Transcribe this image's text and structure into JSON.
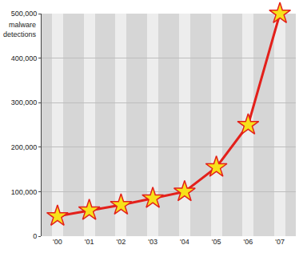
{
  "chart_data": {
    "type": "line",
    "y_label": "malware detections",
    "categories": [
      "'00",
      "'01",
      "'02",
      "'03",
      "'04",
      "'05",
      "'06",
      "'07"
    ],
    "values": [
      45000,
      58000,
      70000,
      85000,
      100000,
      155000,
      250000,
      500000
    ],
    "color": "#e3201b",
    "marker": "star",
    "ylim": [
      0,
      500000
    ],
    "yticks": [
      0,
      {
        "value": 100000,
        "label": "100,000"
      },
      {
        "value": 200000,
        "label": "200,000"
      },
      {
        "value": 300000,
        "label": "300,000"
      },
      {
        "value": 400000,
        "label": "400,000"
      },
      {
        "value": 500000,
        "label": "500,000"
      }
    ],
    "grid": true
  }
}
